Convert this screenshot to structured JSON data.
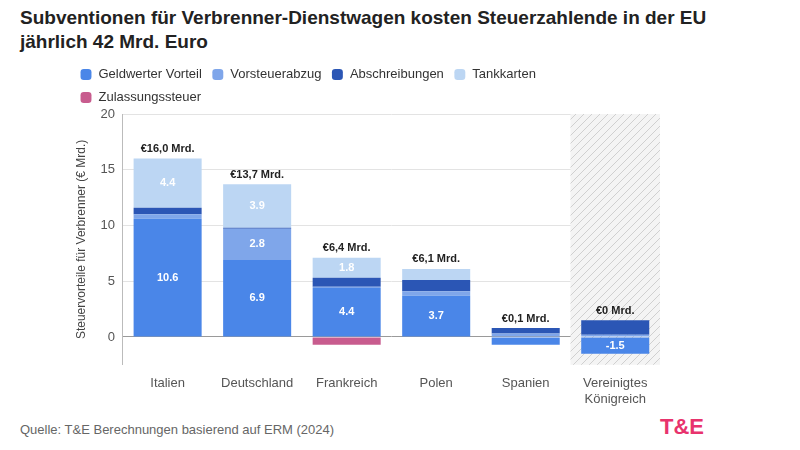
{
  "chart_data": {
    "type": "bar",
    "stacked": true,
    "title": "Subventionen für Verbrenner-Dienstwagen kosten Steuerzahlende in der EU jährlich 42 Mrd. Euro",
    "y_label": "Steuervorteile für Verbrenner (€ Mrd.)",
    "categories": [
      "Italien",
      "Deutschland",
      "Frankreich",
      "Polen",
      "Spanien",
      "Vereinigtes Königreich"
    ],
    "series": [
      {
        "name": "Geldwerter Vorteil",
        "color": "#4a86e8",
        "values": [
          10.6,
          6.9,
          4.4,
          3.7,
          -0.7,
          -1.5
        ],
        "value_labels": [
          "10.6",
          "6.9",
          "4.4",
          "3.7",
          null,
          "-1.5"
        ]
      },
      {
        "name": "Vorsteuerabzug",
        "color": "#7fa6ea",
        "values": [
          0.4,
          2.8,
          0.1,
          0.4,
          0.3,
          0.2
        ],
        "value_labels": [
          null,
          "2.8",
          null,
          null,
          null,
          null
        ]
      },
      {
        "name": "Abschreibungen",
        "color": "#2b56b5",
        "values": [
          0.6,
          0.1,
          0.8,
          1.0,
          0.5,
          1.3
        ],
        "value_labels": [
          null,
          null,
          null,
          null,
          null,
          null
        ]
      },
      {
        "name": "Tankkarten",
        "color": "#bcd6f3",
        "values": [
          4.4,
          3.9,
          1.8,
          1.0,
          0,
          0
        ],
        "value_labels": [
          "4.4",
          "3.9",
          "1.8",
          null,
          null,
          null
        ]
      },
      {
        "name": "Zulassungssteuer",
        "color": "#c85c8e",
        "values": [
          0,
          0,
          -0.7,
          0,
          0,
          0
        ],
        "value_labels": [
          null,
          null,
          null,
          null,
          null,
          null
        ]
      }
    ],
    "totals": {
      "values": [
        16.0,
        13.7,
        6.4,
        6.1,
        0.1,
        0
      ],
      "value_labels": [
        "€16,0 Mrd.",
        "€13,7 Mrd.",
        "€6,4 Mrd.",
        "€6,1 Mrd.",
        "€0,1 Mrd.",
        "€0 Mrd."
      ]
    },
    "ylim": [
      -2.5,
      20
    ],
    "yticks": [
      0,
      5,
      10,
      15,
      20
    ],
    "grid": true,
    "legend": "top left",
    "data_labels": true,
    "shaded_categories": [
      "Vereinigtes Königreich"
    ],
    "source": "Quelle: T&E Berechnungen basierend auf ERM (2024)",
    "logo": "T&E"
  }
}
